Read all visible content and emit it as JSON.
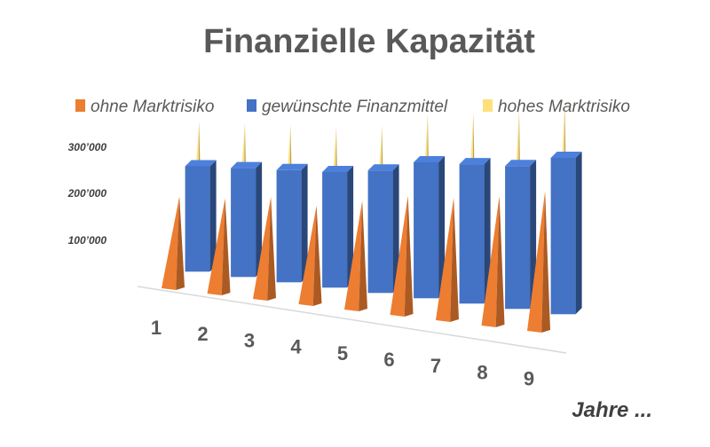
{
  "chart_data": {
    "type": "bar",
    "title": "Finanzielle Kapazität",
    "xlabel": "Jahre ...",
    "ylabel": "",
    "ylim": [
      0,
      300000
    ],
    "y_ticks": [
      "100’000",
      "200’000",
      "300’000"
    ],
    "y_tick_values": [
      100000,
      200000,
      300000
    ],
    "categories": [
      "1",
      "2",
      "3",
      "4",
      "5",
      "6",
      "7",
      "8",
      "9"
    ],
    "legend_position": "top",
    "series": [
      {
        "name": "ohne Marktrisiko",
        "color": "#ED7D31",
        "shape": "pyramid",
        "values": [
          135000,
          140000,
          150000,
          145000,
          160000,
          175000,
          180000,
          190000,
          205000
        ]
      },
      {
        "name": "gewünschte Finanzmittel",
        "color": "#4472C4",
        "shape": "box",
        "values": [
          155000,
          160000,
          165000,
          170000,
          180000,
          200000,
          205000,
          210000,
          230000
        ]
      },
      {
        "name": "hohes Marktrisiko",
        "color": "#FFE07A",
        "shape": "pyramid",
        "values": [
          200000,
          205000,
          210000,
          215000,
          225000,
          250000,
          260000,
          270000,
          290000
        ]
      }
    ]
  }
}
